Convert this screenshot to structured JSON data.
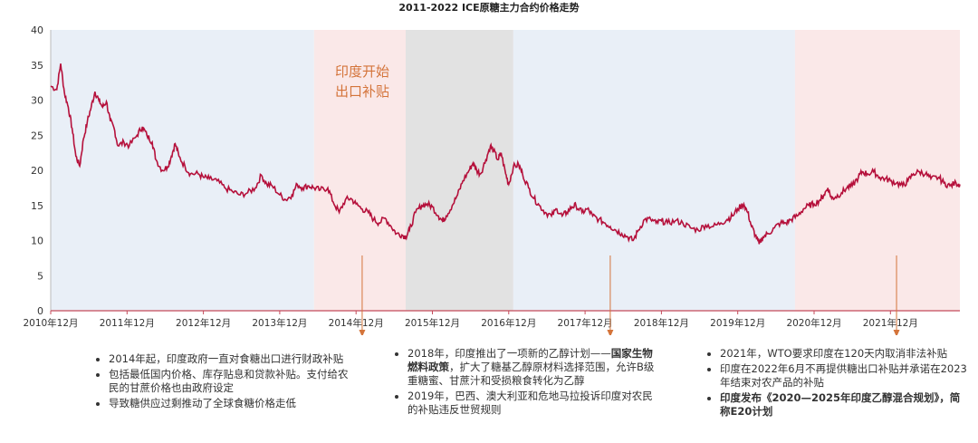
{
  "title": "2011-2022 ICE原糖主力合约价格走势",
  "colors": {
    "line": "#b5103b",
    "shade_blue": "#e9eff7",
    "shade_pink": "#fae8e8",
    "shade_gray": "#e2e2e2",
    "arrow": "#d4743a",
    "axis": "#c44a5a"
  },
  "chart_data": {
    "type": "line",
    "title": "2011-2022 ICE原糖主力合约价格走势",
    "xlabel": "",
    "ylabel": "",
    "ylim": [
      0,
      40
    ],
    "yticks": [
      0,
      5,
      10,
      15,
      20,
      25,
      30,
      35,
      40
    ],
    "xlim": [
      2010.92,
      2022.83
    ],
    "xtick_labels": [
      "2010年12月",
      "2011年12月",
      "2012年12月",
      "2013年12月",
      "2014年12月",
      "2015年12月",
      "2016年12月",
      "2017年12月",
      "2018年12月",
      "2019年12月",
      "2020年12月",
      "2021年12月"
    ],
    "xtick_values": [
      2010.92,
      2011.92,
      2012.92,
      2013.92,
      2014.92,
      2015.92,
      2016.92,
      2017.92,
      2018.92,
      2019.92,
      2020.92,
      2021.92
    ],
    "shaded_regions": [
      {
        "from": 2010.92,
        "to": 2014.37,
        "color": "blue"
      },
      {
        "from": 2014.37,
        "to": 2015.57,
        "color": "pink"
      },
      {
        "from": 2015.57,
        "to": 2016.98,
        "color": "gray"
      },
      {
        "from": 2016.98,
        "to": 2020.67,
        "color": "blue"
      },
      {
        "from": 2020.67,
        "to": 2022.83,
        "color": "pink"
      }
    ],
    "series": [
      {
        "name": "",
        "points": [
          [
            2010.92,
            32.0
          ],
          [
            2011.0,
            31.5
          ],
          [
            2011.05,
            35.2
          ],
          [
            2011.1,
            31.0
          ],
          [
            2011.15,
            29.0
          ],
          [
            2011.2,
            26.0
          ],
          [
            2011.25,
            22.0
          ],
          [
            2011.3,
            20.6
          ],
          [
            2011.35,
            24.5
          ],
          [
            2011.4,
            27.0
          ],
          [
            2011.45,
            29.0
          ],
          [
            2011.5,
            31.2
          ],
          [
            2011.55,
            30.0
          ],
          [
            2011.6,
            29.0
          ],
          [
            2011.65,
            29.8
          ],
          [
            2011.7,
            27.0
          ],
          [
            2011.75,
            26.0
          ],
          [
            2011.8,
            23.5
          ],
          [
            2011.88,
            24.0
          ],
          [
            2011.95,
            23.5
          ],
          [
            2012.05,
            25.0
          ],
          [
            2012.12,
            26.2
          ],
          [
            2012.18,
            25.0
          ],
          [
            2012.25,
            24.0
          ],
          [
            2012.3,
            21.5
          ],
          [
            2012.38,
            20.0
          ],
          [
            2012.45,
            20.5
          ],
          [
            2012.5,
            22.0
          ],
          [
            2012.55,
            23.8
          ],
          [
            2012.6,
            22.0
          ],
          [
            2012.68,
            20.5
          ],
          [
            2012.75,
            19.5
          ],
          [
            2012.85,
            19.5
          ],
          [
            2012.92,
            19.0
          ],
          [
            2013.0,
            18.8
          ],
          [
            2013.1,
            18.5
          ],
          [
            2013.2,
            17.5
          ],
          [
            2013.3,
            17.0
          ],
          [
            2013.4,
            16.5
          ],
          [
            2013.5,
            16.8
          ],
          [
            2013.6,
            17.5
          ],
          [
            2013.68,
            19.3
          ],
          [
            2013.75,
            18.0
          ],
          [
            2013.82,
            17.8
          ],
          [
            2013.92,
            16.5
          ],
          [
            2014.0,
            15.8
          ],
          [
            2014.08,
            16.5
          ],
          [
            2014.15,
            18.0
          ],
          [
            2014.22,
            17.5
          ],
          [
            2014.3,
            17.8
          ],
          [
            2014.37,
            17.5
          ],
          [
            2014.45,
            17.2
          ],
          [
            2014.55,
            17.5
          ],
          [
            2014.62,
            15.5
          ],
          [
            2014.7,
            14.0
          ],
          [
            2014.78,
            15.8
          ],
          [
            2014.85,
            16.0
          ],
          [
            2014.92,
            15.2
          ],
          [
            2015.0,
            14.5
          ],
          [
            2015.08,
            14.0
          ],
          [
            2015.15,
            13.0
          ],
          [
            2015.22,
            12.5
          ],
          [
            2015.3,
            13.2
          ],
          [
            2015.38,
            12.0
          ],
          [
            2015.45,
            11.0
          ],
          [
            2015.52,
            10.8
          ],
          [
            2015.57,
            10.5
          ],
          [
            2015.62,
            11.5
          ],
          [
            2015.7,
            14.0
          ],
          [
            2015.78,
            15.0
          ],
          [
            2015.85,
            15.2
          ],
          [
            2015.92,
            14.8
          ],
          [
            2016.0,
            13.5
          ],
          [
            2016.05,
            12.8
          ],
          [
            2016.1,
            13.5
          ],
          [
            2016.18,
            15.0
          ],
          [
            2016.25,
            16.5
          ],
          [
            2016.32,
            18.5
          ],
          [
            2016.4,
            20.0
          ],
          [
            2016.45,
            21.0
          ],
          [
            2016.5,
            20.0
          ],
          [
            2016.55,
            19.5
          ],
          [
            2016.62,
            21.5
          ],
          [
            2016.68,
            23.5
          ],
          [
            2016.72,
            22.8
          ],
          [
            2016.78,
            21.5
          ],
          [
            2016.82,
            22.5
          ],
          [
            2016.88,
            19.5
          ],
          [
            2016.92,
            18.0
          ],
          [
            2016.98,
            20.5
          ],
          [
            2017.05,
            20.8
          ],
          [
            2017.1,
            19.5
          ],
          [
            2017.18,
            17.5
          ],
          [
            2017.25,
            16.0
          ],
          [
            2017.32,
            15.0
          ],
          [
            2017.4,
            14.0
          ],
          [
            2017.48,
            13.5
          ],
          [
            2017.55,
            14.5
          ],
          [
            2017.62,
            13.5
          ],
          [
            2017.68,
            14.0
          ],
          [
            2017.75,
            14.8
          ],
          [
            2017.8,
            15.0
          ],
          [
            2017.88,
            14.0
          ],
          [
            2017.95,
            14.5
          ],
          [
            2018.02,
            13.5
          ],
          [
            2018.1,
            13.0
          ],
          [
            2018.18,
            12.5
          ],
          [
            2018.25,
            12.0
          ],
          [
            2018.32,
            11.5
          ],
          [
            2018.4,
            11.0
          ],
          [
            2018.48,
            10.5
          ],
          [
            2018.55,
            10.0
          ],
          [
            2018.62,
            11.5
          ],
          [
            2018.7,
            13.0
          ],
          [
            2018.78,
            13.0
          ],
          [
            2018.85,
            12.5
          ],
          [
            2018.92,
            12.8
          ],
          [
            2019.0,
            12.5
          ],
          [
            2019.1,
            12.8
          ],
          [
            2019.2,
            12.5
          ],
          [
            2019.3,
            11.8
          ],
          [
            2019.4,
            11.5
          ],
          [
            2019.5,
            12.2
          ],
          [
            2019.6,
            12.0
          ],
          [
            2019.7,
            12.5
          ],
          [
            2019.78,
            13.0
          ],
          [
            2019.85,
            13.5
          ],
          [
            2019.92,
            14.5
          ],
          [
            2020.0,
            15.2
          ],
          [
            2020.05,
            14.0
          ],
          [
            2020.1,
            12.0
          ],
          [
            2020.15,
            10.8
          ],
          [
            2020.2,
            9.5
          ],
          [
            2020.25,
            10.5
          ],
          [
            2020.32,
            11.0
          ],
          [
            2020.4,
            11.8
          ],
          [
            2020.48,
            12.5
          ],
          [
            2020.55,
            12.5
          ],
          [
            2020.62,
            13.0
          ],
          [
            2020.7,
            13.5
          ],
          [
            2020.78,
            14.5
          ],
          [
            2020.85,
            15.0
          ],
          [
            2020.92,
            15.2
          ],
          [
            2021.0,
            15.8
          ],
          [
            2021.05,
            16.5
          ],
          [
            2021.1,
            17.5
          ],
          [
            2021.15,
            16.0
          ],
          [
            2021.2,
            16.2
          ],
          [
            2021.28,
            16.8
          ],
          [
            2021.35,
            17.5
          ],
          [
            2021.42,
            17.8
          ],
          [
            2021.5,
            19.0
          ],
          [
            2021.55,
            19.8
          ],
          [
            2021.62,
            19.5
          ],
          [
            2021.7,
            19.8
          ],
          [
            2021.78,
            19.0
          ],
          [
            2021.85,
            18.8
          ],
          [
            2021.92,
            18.5
          ],
          [
            2022.0,
            18.2
          ],
          [
            2022.08,
            17.8
          ],
          [
            2022.15,
            18.5
          ],
          [
            2022.22,
            19.5
          ],
          [
            2022.3,
            19.8
          ],
          [
            2022.38,
            19.5
          ],
          [
            2022.45,
            18.8
          ],
          [
            2022.55,
            19.0
          ],
          [
            2022.62,
            18.2
          ],
          [
            2022.7,
            17.8
          ],
          [
            2022.78,
            18.2
          ],
          [
            2022.83,
            18.0
          ]
        ]
      }
    ],
    "annotations": [
      {
        "text": "印度开始\n出口补贴",
        "x": 2015.0
      },
      {
        "arrow_x": 2015.0
      },
      {
        "arrow_x": 2018.25
      },
      {
        "arrow_x": 2022.0
      }
    ],
    "grid": false,
    "legend": "none"
  },
  "annotation": {
    "line1": "印度开始",
    "line2": "出口补贴"
  },
  "notes": {
    "col1": [
      "2014年起，印度政府一直对食糖出口进行财政补贴",
      "包括最低国内价格、库存贴息和贷款补贴。支付给农民的甘蔗价格也由政府设定",
      "导致糖供应过剩推动了全球食糖价格走低"
    ],
    "col2_item1_pre": "2018年，印度推出了一项新的乙醇计划——",
    "col2_item1_bold": "国家生物燃料政策",
    "col2_item1_post": "，扩大了糖基乙醇原材料选择范围，允许B级重糖蜜、甘蔗汁和受损粮食转化为乙醇",
    "col2_item2": "2019年，巴西、澳大利亚和危地马拉投诉印度对农民的补贴违反世贸规则",
    "col3": [
      "2021年，WTO要求印度在120天内取消非法补贴",
      "印度在2022年6月不再提供糖出口补贴并承诺在2023年结束对农产品的补贴"
    ],
    "col3_bold": "印度发布《2020—2025年印度乙醇混合规划》，简称E20计划"
  }
}
